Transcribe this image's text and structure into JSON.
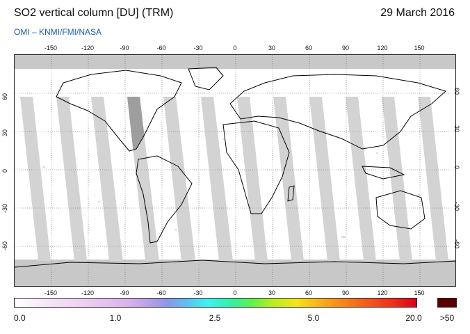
{
  "header": {
    "title": "SO2 vertical column [DU] (TRM)",
    "date": "29 March 2016",
    "subtitle": "OMI  –  KNMI/FMI/NASA"
  },
  "map": {
    "lon_ticks": [
      "-150",
      "-120",
      "-90",
      "-60",
      "-30",
      "0",
      "30",
      "60",
      "90",
      "120",
      "150"
    ],
    "lat_ticks": [
      "60",
      "30",
      "0",
      "-30",
      "-60"
    ],
    "colors": {
      "land_outline": "#000000",
      "polar_nodata": "#c8c8c8",
      "nodata_swath": "#bdbdbd",
      "low_value_speckle": "#e8c8f0"
    }
  },
  "colorbar": {
    "labels": [
      "0.0",
      "1.0",
      "2.5",
      "5.0",
      "20.0"
    ],
    "overflow_label": ">50",
    "overflow_color": "#5a0000"
  }
}
